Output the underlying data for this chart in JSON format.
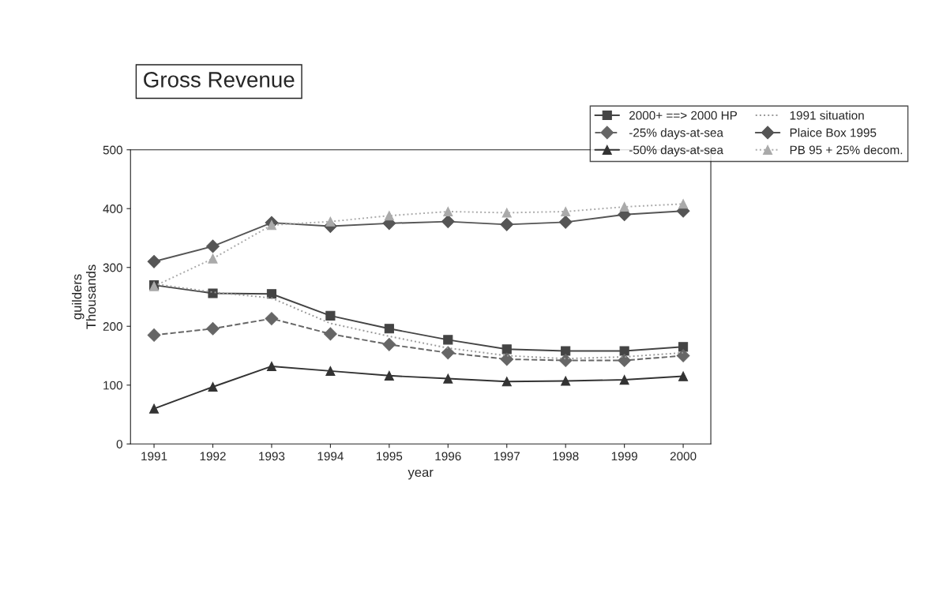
{
  "chart_data": {
    "type": "line",
    "title": "Gross Revenue",
    "xlabel": "year",
    "ylabel": "guilders\nThousands",
    "categories": [
      "1991",
      "1992",
      "1993",
      "1994",
      "1995",
      "1996",
      "1997",
      "1998",
      "1999",
      "2000"
    ],
    "ylim": [
      0,
      500
    ],
    "yticks": [
      0,
      100,
      200,
      300,
      400,
      500
    ],
    "grid": false,
    "legend": "top right",
    "series": [
      {
        "name": "2000+ ==> 2000 HP",
        "color": "#444444",
        "marker": "square",
        "line_style": "solid",
        "values": [
          270,
          256,
          255,
          218,
          196,
          177,
          161,
          158,
          158,
          165
        ]
      },
      {
        "name": "-25% days-at-sea",
        "color": "#666666",
        "marker": "diamond",
        "line_style": "dashed",
        "values": [
          185,
          196,
          213,
          187,
          169,
          155,
          144,
          142,
          142,
          150
        ]
      },
      {
        "name": "-50% days-at-sea",
        "color": "#333333",
        "marker": "triangle",
        "line_style": "solid",
        "values": [
          60,
          97,
          132,
          124,
          116,
          111,
          106,
          107,
          109,
          115
        ]
      },
      {
        "name": "1991 situation",
        "color": "#999999",
        "marker": "none",
        "line_style": "dotted",
        "values": [
          272,
          258,
          248,
          205,
          183,
          163,
          150,
          145,
          148,
          155
        ]
      },
      {
        "name": "Plaice Box 1995",
        "color": "#555555",
        "marker": "diamond",
        "line_style": "solid",
        "values": [
          310,
          336,
          376,
          370,
          375,
          378,
          373,
          377,
          390,
          396
        ]
      },
      {
        "name": "PB 95 + 25% decom.",
        "color": "#aaaaaa",
        "marker": "triangle",
        "line_style": "dotted",
        "values": [
          268,
          315,
          372,
          378,
          388,
          395,
          393,
          395,
          403,
          408
        ]
      }
    ]
  }
}
